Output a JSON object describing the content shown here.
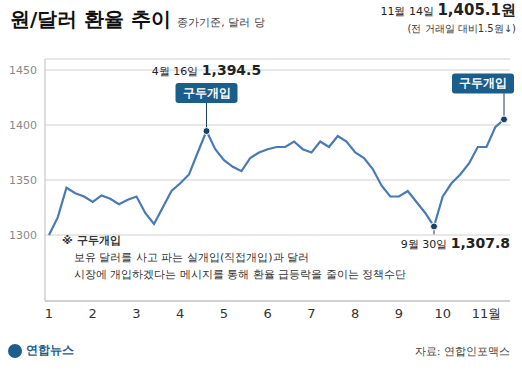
{
  "chart_data": {
    "type": "line",
    "title": "원/달러 환율 추이",
    "subtitle": "종가기준, 달러 당",
    "categories": [
      "1",
      null,
      null,
      null,
      null,
      "2",
      null,
      null,
      null,
      null,
      "3",
      null,
      null,
      null,
      null,
      "4",
      null,
      null,
      null,
      null,
      "5",
      null,
      null,
      null,
      null,
      "6",
      null,
      null,
      null,
      null,
      "7",
      null,
      null,
      null,
      null,
      "8",
      null,
      null,
      null,
      null,
      "9",
      null,
      null,
      null,
      null,
      "10",
      null,
      null,
      null,
      null,
      "11월",
      null,
      null
    ],
    "values": [
      1300.0,
      1316,
      1343,
      1338,
      1335,
      1330,
      1336,
      1333,
      1328,
      1332,
      1335,
      1320,
      1310,
      1325,
      1340,
      1347,
      1355,
      1375,
      1394.5,
      1378,
      1368,
      1362,
      1358,
      1370,
      1375,
      1378,
      1380,
      1380,
      1385,
      1378,
      1375,
      1385,
      1380,
      1390,
      1385,
      1375,
      1370,
      1360,
      1345,
      1335,
      1335,
      1340,
      1330,
      1320,
      1307.8,
      1335,
      1347,
      1355,
      1365,
      1380,
      1380,
      1398,
      1405.1
    ],
    "color": "#4a7ab5",
    "ylim": [
      1240,
      1460
    ],
    "yticks": [
      1300,
      1350,
      1400,
      1450
    ],
    "grid": true,
    "annotations": [
      {
        "value": 1394.5,
        "date": "4월 16일",
        "value_label": "1,394.5",
        "badge": "구두개입"
      },
      {
        "value": 1307.8,
        "date": "9월 30일",
        "value_label": "1,307.8"
      },
      {
        "value": 1405.1,
        "date": "11월 14일",
        "value_label": "1,405.1원",
        "change": "(전 거래일 대비1.5원↓)",
        "badge": "구두개입"
      }
    ],
    "note": {
      "title": "※ 구두개입",
      "lines": [
        "보유 달러를 사고 파는 실개입(직접개입)과 달러",
        "시장에 개입하겠다는 메시지를 통해 환율 급등락을 줄이는 정책수단"
      ]
    },
    "source": "자료: 연합인포맥스",
    "logo": "연합뉴스"
  }
}
